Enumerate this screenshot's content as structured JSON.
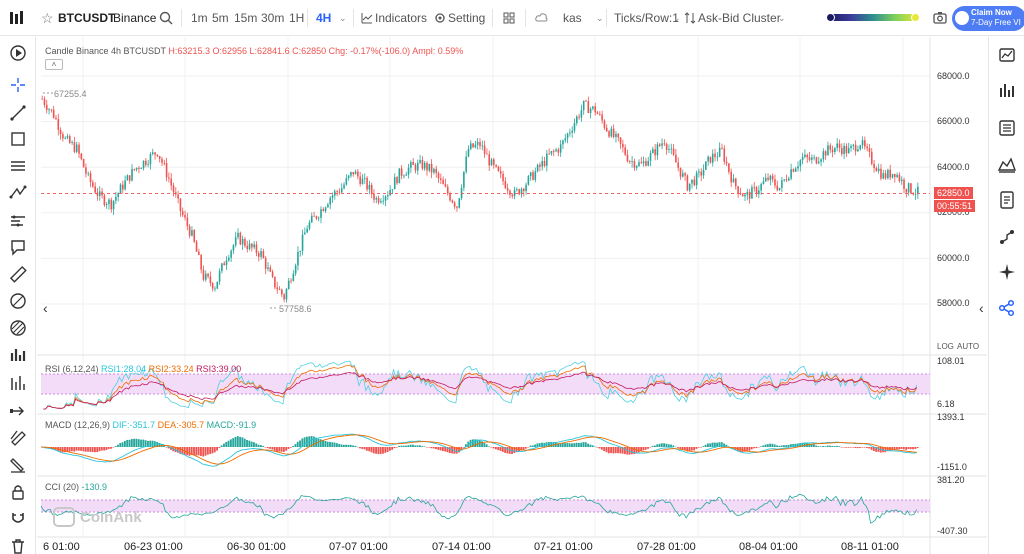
{
  "toolbar": {
    "symbol": "BTCUSDT",
    "exchange": "Binance",
    "timeframes": [
      "1m",
      "5m",
      "15m",
      "30m",
      "1H",
      "4H"
    ],
    "active_timeframe": "4H",
    "indicators_label": "Indicators",
    "setting_label": "Setting",
    "layout_name": "kas",
    "ticks_label": "Ticks/Row:1",
    "cluster_label": "Ask-Bid Cluster",
    "claim_line1": "Claim Now",
    "claim_line2": "7-Day Free VI"
  },
  "left_tools": [
    "play-icon",
    "crosshair-icon",
    "trend-line-icon",
    "rectangle-icon",
    "horizontal-lines-icon",
    "parallel-channel-icon",
    "xabcd-pattern-icon",
    "ruler-lines-icon",
    "callout-icon",
    "measure-ruler-icon",
    "fib-icon",
    "brush-icon",
    "bar-chart-icon",
    "long-position-icon",
    "arrow-tool-icon",
    "eraser-icon",
    "highlighter-icon",
    "lock-icon",
    "magnet-icon",
    "trash-icon"
  ],
  "right_tools": [
    "line-chart-icon",
    "volume-bars-icon",
    "list-icon",
    "mountain-chart-icon",
    "document-icon",
    "connect-icon",
    "sparkle-icon",
    "share-icon"
  ],
  "header": {
    "prefix": "Candle  Binance 4h BTCUSDT",
    "high": "H:63215.3",
    "open": "O:62956",
    "low": "L:62841.6",
    "close": "C:62850",
    "change": "Chg: -0.17%(-106.0)",
    "ampl": "Ampl: 0.59%"
  },
  "price_axis": [
    "68000.0",
    "66000.0",
    "64000.0",
    "62000.0",
    "60000.0",
    "58000.0"
  ],
  "last_price": "62850.0",
  "countdown": "00:55:51",
  "high_label": "67255.4",
  "low_label": "57758.6",
  "log_label": "LOG",
  "auto_label": "AUTO",
  "rsi": {
    "title": "RSI (6,12,24)",
    "v1": "RSI1:28.04",
    "v2": "RSI2:33.24",
    "v3": "RSI3:39.00",
    "top": "108.01",
    "bottom": "6.18"
  },
  "macd": {
    "title": "MACD (12,26,9)",
    "dif": "DIF:-351.7",
    "dea": "DEA:-305.7",
    "macd": "MACD:-91.9",
    "top": "1393.1",
    "bottom": "-1151.0"
  },
  "cci": {
    "title": "CCI (20)",
    "value": "-130.9",
    "top": "381.20",
    "bottom": "-407.30"
  },
  "watermark": "CoinAnk",
  "x_labels": [
    "6 01:00",
    "06-23 01:00",
    "06-30 01:00",
    "07-07 01:00",
    "07-14 01:00",
    "07-21 01:00",
    "07-28 01:00",
    "08-04 01:00",
    "08-11 01:00"
  ],
  "colors": {
    "up": "#26a69a",
    "down": "#ef5350",
    "accent": "#2962ff",
    "rsi1": "#4dd0e1",
    "rsi2": "#ef6c00",
    "rsi3": "#c2185b"
  },
  "chart_data": {
    "type": "candlestick",
    "ylim": [
      57000,
      69000
    ],
    "close_path": [
      [
        0,
        67000
      ],
      [
        5,
        66300
      ],
      [
        10,
        65200
      ],
      [
        15,
        64800
      ],
      [
        20,
        63500
      ],
      [
        25,
        62700
      ],
      [
        30,
        62400
      ],
      [
        35,
        63200
      ],
      [
        40,
        63900
      ],
      [
        45,
        64300
      ],
      [
        50,
        64700
      ],
      [
        55,
        63500
      ],
      [
        60,
        62100
      ],
      [
        65,
        61000
      ],
      [
        70,
        59200
      ],
      [
        75,
        58800
      ],
      [
        80,
        60100
      ],
      [
        85,
        60900
      ],
      [
        90,
        60500
      ],
      [
        95,
        60200
      ],
      [
        100,
        59000
      ],
      [
        105,
        58300
      ],
      [
        110,
        59900
      ],
      [
        115,
        61400
      ],
      [
        120,
        62000
      ],
      [
        125,
        62700
      ],
      [
        130,
        63100
      ],
      [
        135,
        63800
      ],
      [
        140,
        63300
      ],
      [
        145,
        62600
      ],
      [
        150,
        62900
      ],
      [
        155,
        63700
      ],
      [
        160,
        64000
      ],
      [
        165,
        64100
      ],
      [
        170,
        63800
      ],
      [
        175,
        63000
      ],
      [
        180,
        62300
      ],
      [
        185,
        64800
      ],
      [
        190,
        65000
      ],
      [
        195,
        64100
      ],
      [
        200,
        63400
      ],
      [
        205,
        62800
      ],
      [
        210,
        63300
      ],
      [
        215,
        63900
      ],
      [
        220,
        64500
      ],
      [
        225,
        64900
      ],
      [
        230,
        65800
      ],
      [
        235,
        66700
      ],
      [
        240,
        66500
      ],
      [
        245,
        65700
      ],
      [
        250,
        65100
      ],
      [
        255,
        64300
      ],
      [
        260,
        64100
      ],
      [
        265,
        64600
      ],
      [
        270,
        65200
      ],
      [
        275,
        64200
      ],
      [
        280,
        63200
      ],
      [
        285,
        63600
      ],
      [
        290,
        64400
      ],
      [
        295,
        64700
      ],
      [
        300,
        63300
      ],
      [
        305,
        62700
      ],
      [
        310,
        63000
      ],
      [
        315,
        63500
      ],
      [
        320,
        63100
      ],
      [
        325,
        63900
      ],
      [
        330,
        64400
      ],
      [
        335,
        64300
      ],
      [
        340,
        64700
      ],
      [
        345,
        64900
      ],
      [
        350,
        64700
      ],
      [
        355,
        65100
      ],
      [
        360,
        64300
      ],
      [
        365,
        63600
      ],
      [
        370,
        63800
      ],
      [
        375,
        63100
      ],
      [
        380,
        62900
      ]
    ],
    "rsi_level_band": [
      30,
      70
    ],
    "cci_level_band": [
      -100,
      100
    ]
  }
}
